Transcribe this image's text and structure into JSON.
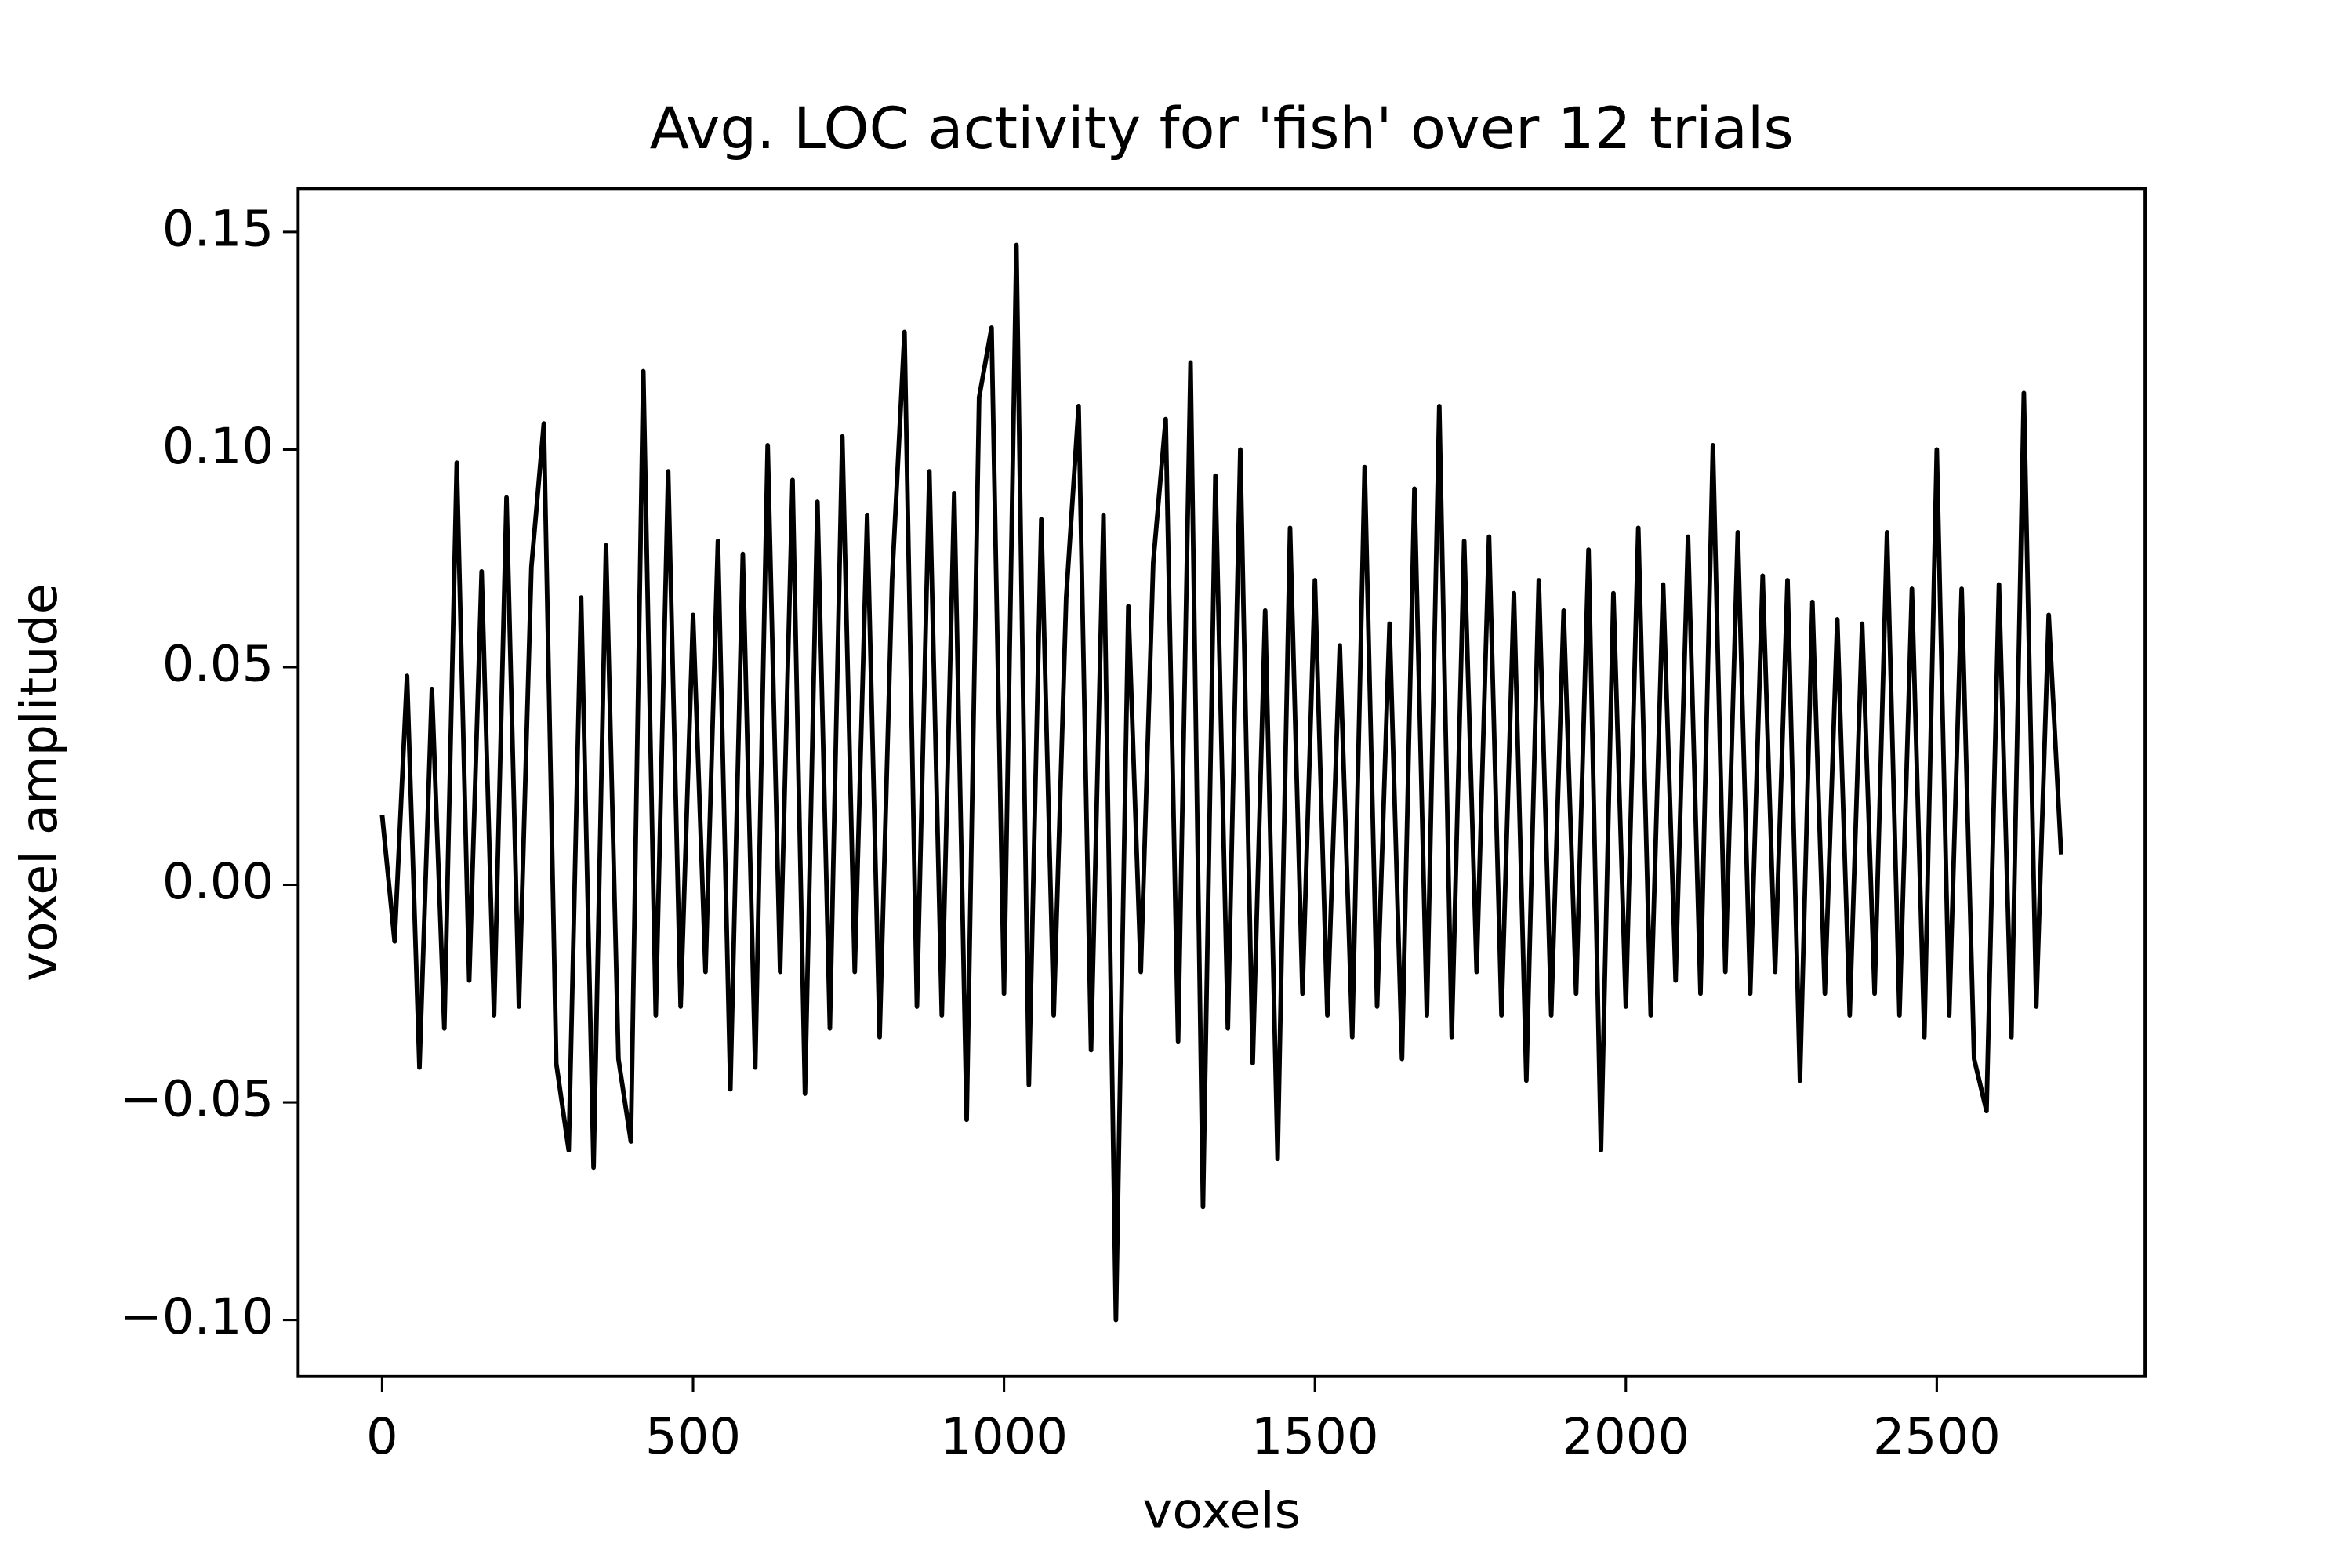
{
  "chart_data": {
    "type": "line",
    "title": "Avg. LOC activity for 'fish' over 12 trials",
    "x_label": "voxels",
    "y_label": "voxel amplitude",
    "xlim": [
      -135,
      2835
    ],
    "ylim": [
      -0.113,
      0.16
    ],
    "xticks": [
      0,
      500,
      1000,
      1500,
      2000,
      2500
    ],
    "yticks": [
      {
        "value": -0.1,
        "label": "−0.10"
      },
      {
        "value": -0.05,
        "label": "−0.05"
      },
      {
        "value": 0,
        "label": "0.00"
      },
      0.05,
      {
        "value": 0.1,
        "label": "0.10"
      },
      0.15
    ],
    "x": [
      0,
      20,
      40,
      60,
      80,
      100,
      120,
      140,
      160,
      180,
      200,
      220,
      240,
      260,
      280,
      300,
      320,
      340,
      360,
      380,
      400,
      420,
      440,
      460,
      480,
      500,
      520,
      540,
      560,
      580,
      600,
      620,
      640,
      660,
      680,
      700,
      720,
      740,
      760,
      780,
      800,
      820,
      840,
      860,
      880,
      900,
      920,
      940,
      960,
      980,
      1000,
      1020,
      1040,
      1060,
      1080,
      1100,
      1120,
      1140,
      1160,
      1180,
      1200,
      1220,
      1240,
      1260,
      1280,
      1300,
      1320,
      1340,
      1360,
      1380,
      1400,
      1420,
      1440,
      1460,
      1480,
      1500,
      1520,
      1540,
      1560,
      1580,
      1600,
      1620,
      1640,
      1660,
      1680,
      1700,
      1720,
      1740,
      1760,
      1780,
      1800,
      1820,
      1840,
      1860,
      1880,
      1900,
      1920,
      1940,
      1960,
      1980,
      2000,
      2020,
      2040,
      2060,
      2080,
      2100,
      2120,
      2140,
      2160,
      2180,
      2200,
      2220,
      2240,
      2260,
      2280,
      2300,
      2320,
      2340,
      2360,
      2380,
      2400,
      2420,
      2440,
      2460,
      2480,
      2500,
      2520,
      2540,
      2560,
      2580,
      2600,
      2620,
      2640,
      2660,
      2680,
      2700
    ],
    "series": [
      {
        "color": "#000000",
        "values": [
          0.016,
          -0.013,
          0.048,
          -0.042,
          0.045,
          -0.033,
          0.097,
          -0.022,
          0.072,
          -0.03,
          0.089,
          -0.028,
          0.073,
          0.106,
          -0.041,
          -0.061,
          0.066,
          -0.065,
          0.078,
          -0.04,
          -0.059,
          0.118,
          -0.03,
          0.095,
          -0.028,
          0.062,
          -0.02,
          0.079,
          -0.047,
          0.076,
          -0.042,
          0.101,
          -0.02,
          0.093,
          -0.048,
          0.088,
          -0.033,
          0.103,
          -0.02,
          0.085,
          -0.035,
          0.07,
          0.127,
          -0.028,
          0.095,
          -0.03,
          0.09,
          -0.054,
          0.112,
          0.128,
          -0.025,
          0.147,
          -0.046,
          0.084,
          -0.03,
          0.066,
          0.11,
          -0.038,
          0.085,
          -0.1,
          0.064,
          -0.02,
          0.074,
          0.107,
          -0.036,
          0.12,
          -0.074,
          0.094,
          -0.033,
          0.1,
          -0.041,
          0.063,
          -0.063,
          0.082,
          -0.025,
          0.07,
          -0.03,
          0.055,
          -0.035,
          0.096,
          -0.028,
          0.06,
          -0.04,
          0.091,
          -0.03,
          0.11,
          -0.035,
          0.079,
          -0.02,
          0.08,
          -0.03,
          0.067,
          -0.045,
          0.07,
          -0.03,
          0.063,
          -0.025,
          0.077,
          -0.061,
          0.067,
          -0.028,
          0.082,
          -0.03,
          0.069,
          -0.022,
          0.08,
          -0.025,
          0.101,
          -0.02,
          0.081,
          -0.025,
          0.071,
          -0.02,
          0.07,
          -0.045,
          0.065,
          -0.025,
          0.061,
          -0.03,
          0.06,
          -0.025,
          0.081,
          -0.03,
          0.068,
          -0.035,
          0.1,
          -0.03,
          0.068,
          -0.04,
          -0.052,
          0.069,
          -0.035,
          0.113,
          -0.028,
          0.062,
          0.007
        ]
      }
    ]
  }
}
